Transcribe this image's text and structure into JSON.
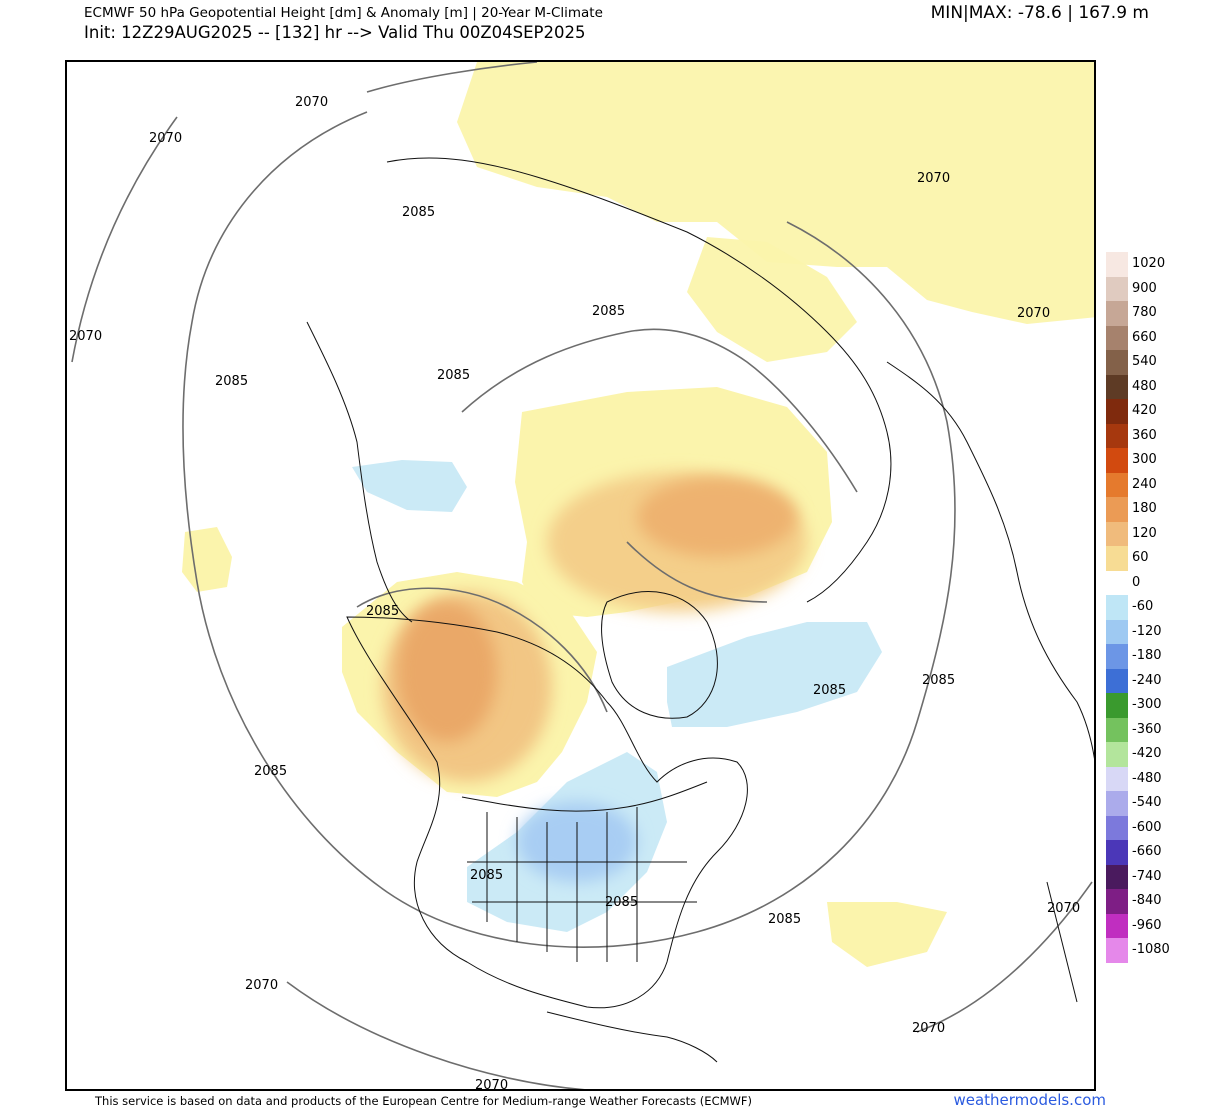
{
  "header": {
    "title_line1": "ECMWF 50 hPa Geopotential Height [dm] & Anomaly [m] | 20-Year M-Climate",
    "title_line2": "Init: 12Z29AUG2025 -- [132] hr --> Valid Thu 00Z04SEP2025",
    "minmax": "MIN|MAX: -78.6 | 167.9 m"
  },
  "map": {
    "contour_labels": [
      "2070",
      "2085"
    ]
  },
  "legend": {
    "items": [
      {
        "label": "1020",
        "color": "#f7e8e2"
      },
      {
        "label": "900",
        "color": "#e0cbc0"
      },
      {
        "label": "780",
        "color": "#c6a796"
      },
      {
        "label": "660",
        "color": "#a6826d"
      },
      {
        "label": "540",
        "color": "#836149"
      },
      {
        "label": "480",
        "color": "#5e3b25"
      },
      {
        "label": "420",
        "color": "#7f2a0d"
      },
      {
        "label": "360",
        "color": "#a6380e"
      },
      {
        "label": "300",
        "color": "#d24a0f"
      },
      {
        "label": "240",
        "color": "#e57a2d"
      },
      {
        "label": "180",
        "color": "#eb9b55"
      },
      {
        "label": "120",
        "color": "#f0bb7c"
      },
      {
        "label": "60",
        "color": "#f7dc94"
      },
      {
        "label": "0",
        "color": "#ffffff"
      },
      {
        "label": "-60",
        "color": "#bfe6f6"
      },
      {
        "label": "-120",
        "color": "#9ec9f2"
      },
      {
        "label": "-180",
        "color": "#6c96e6"
      },
      {
        "label": "-240",
        "color": "#3d6fd6"
      },
      {
        "label": "-300",
        "color": "#3a9a2e"
      },
      {
        "label": "-360",
        "color": "#74c25e"
      },
      {
        "label": "-420",
        "color": "#b3e59c"
      },
      {
        "label": "-480",
        "color": "#d8d8f6"
      },
      {
        "label": "-540",
        "color": "#ababeb"
      },
      {
        "label": "-600",
        "color": "#7c79dc"
      },
      {
        "label": "-660",
        "color": "#4b37b8"
      },
      {
        "label": "-740",
        "color": "#4a1a5e"
      },
      {
        "label": "-840",
        "color": "#7e1e85"
      },
      {
        "label": "-960",
        "color": "#c02ec0"
      },
      {
        "label": "-1080",
        "color": "#e588ea"
      }
    ]
  },
  "footer": {
    "disclaimer": "This service is based on data and products of the European Centre for Medium-range Weather Forecasts (ECMWF)",
    "brand": "weathermodels.com"
  }
}
